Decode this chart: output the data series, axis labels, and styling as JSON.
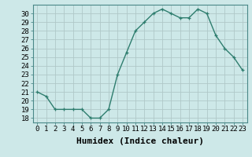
{
  "x": [
    0,
    1,
    2,
    3,
    4,
    5,
    6,
    7,
    8,
    9,
    10,
    11,
    12,
    13,
    14,
    15,
    16,
    17,
    18,
    19,
    20,
    21,
    22,
    23
  ],
  "y": [
    21,
    20.5,
    19,
    19,
    19,
    19,
    18,
    18,
    19,
    23,
    25.5,
    28,
    29,
    30,
    30.5,
    30,
    29.5,
    29.5,
    30.5,
    30,
    27.5,
    26,
    25,
    23.5
  ],
  "line_color": "#2e7d6e",
  "marker": "+",
  "bg_color": "#cde8e8",
  "grid_color": "#b0c8c8",
  "xlabel": "Humidex (Indice chaleur)",
  "xlim": [
    -0.5,
    23.5
  ],
  "ylim": [
    17.5,
    31.0
  ],
  "yticks": [
    18,
    19,
    20,
    21,
    22,
    23,
    24,
    25,
    26,
    27,
    28,
    29,
    30
  ],
  "xtick_labels": [
    "0",
    "1",
    "2",
    "3",
    "4",
    "5",
    "6",
    "7",
    "8",
    "9",
    "10",
    "11",
    "12",
    "13",
    "14",
    "15",
    "16",
    "17",
    "18",
    "19",
    "20",
    "21",
    "22",
    "23"
  ],
  "xlabel_fontsize": 8,
  "tick_fontsize": 6.5,
  "line_width": 1.0,
  "marker_size": 3.5
}
